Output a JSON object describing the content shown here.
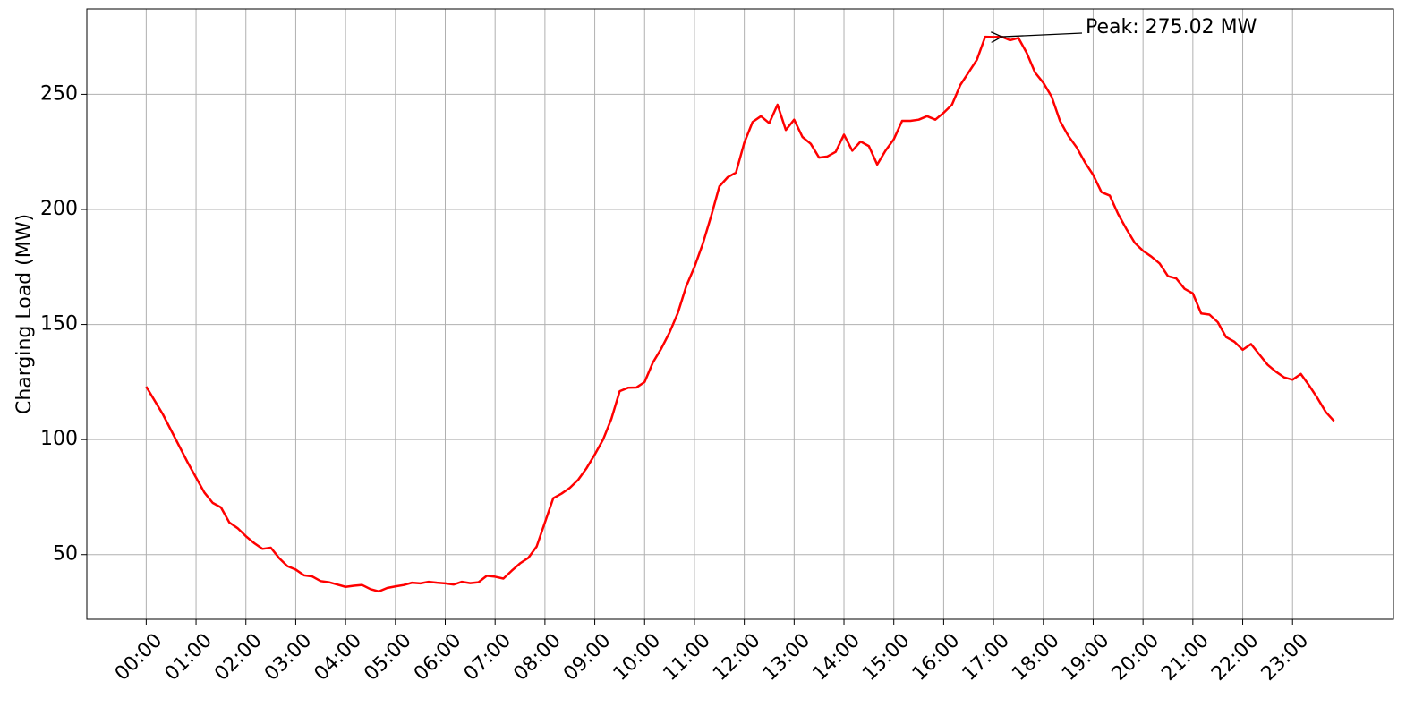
{
  "chart_data": {
    "type": "line",
    "ylabel": "Charging Load (MW)",
    "annotation": "Peak: 275.02 MW",
    "color": "#ff0000",
    "grid": true,
    "x": [
      0,
      10,
      20,
      30,
      40,
      50,
      60,
      70,
      80,
      90,
      100,
      110,
      120,
      130,
      140,
      150,
      160,
      170,
      180,
      190,
      200,
      210,
      220,
      230,
      240,
      250,
      260,
      270,
      280,
      290,
      300,
      310,
      320,
      330,
      340,
      350,
      360,
      370,
      380,
      390,
      400,
      410,
      420,
      430,
      440,
      450,
      460,
      470,
      480,
      490,
      500,
      510,
      520,
      530,
      540,
      550,
      560,
      570,
      580,
      590,
      600,
      610,
      620,
      630,
      640,
      650,
      660,
      670,
      680,
      690,
      700,
      710,
      720,
      730,
      740,
      750,
      760,
      770,
      780,
      790,
      800,
      810,
      820,
      830,
      840,
      850,
      860,
      870,
      880,
      890,
      900,
      910,
      920,
      930,
      940,
      950,
      960,
      970,
      980,
      990,
      1000,
      1010,
      1020,
      1030,
      1040,
      1050,
      1060,
      1070,
      1080,
      1090,
      1100,
      1110,
      1120,
      1130,
      1140,
      1150,
      1160,
      1170,
      1180,
      1190,
      1200,
      1210,
      1220,
      1230,
      1240,
      1250,
      1260,
      1270,
      1280,
      1290,
      1300,
      1310,
      1320,
      1330,
      1340,
      1350,
      1360,
      1370,
      1380,
      1390,
      1400,
      1410,
      1420,
      1430
    ],
    "values": [
      123,
      117,
      111,
      104,
      97,
      90,
      83.5,
      77,
      72.5,
      70.5,
      64,
      61.5,
      58,
      55,
      52.5,
      53,
      48.5,
      45,
      43.5,
      41,
      40.5,
      38.5,
      38,
      37,
      36,
      36.5,
      36.8,
      35,
      34,
      35.5,
      36.2,
      36.8,
      37.8,
      37.5,
      38.2,
      37.8,
      37.5,
      37,
      38.2,
      37.6,
      38,
      40.8,
      40.4,
      39.6,
      43,
      46.2,
      48.6,
      53.5,
      64,
      74.5,
      76.5,
      79,
      82.5,
      87.5,
      93.5,
      100,
      109,
      121,
      122.5,
      122.6,
      125,
      133.5,
      139.5,
      146.5,
      155,
      166.5,
      175,
      185,
      197,
      210,
      214,
      216,
      229,
      238,
      240.5,
      237.5,
      245.5,
      234.5,
      239,
      231.5,
      228.5,
      222.5,
      223,
      225,
      232.5,
      225.5,
      229.5,
      227.5,
      219.5,
      225.5,
      230.5,
      238.5,
      238.5,
      239,
      240.5,
      239,
      242,
      245.5,
      254,
      259.5,
      265,
      275,
      274.9,
      275.02,
      273.5,
      274.5,
      268,
      259.5,
      255,
      249,
      238.5,
      232,
      227,
      220.5,
      215,
      207.5,
      206,
      198,
      191.5,
      185.5,
      182,
      179.5,
      176.5,
      171,
      170,
      165.5,
      163.5,
      154.8,
      154.3,
      151,
      144.5,
      142.5,
      139,
      141.5,
      137,
      132.5,
      129.5,
      127,
      126,
      128.5,
      123.5,
      118,
      112,
      108
    ],
    "xlim": [
      -71.5,
      1501.5
    ],
    "ylim": [
      21.9,
      287.1
    ],
    "xticks": [
      {
        "value": 0,
        "label": "00:00"
      },
      {
        "value": 60,
        "label": "01:00"
      },
      {
        "value": 120,
        "label": "02:00"
      },
      {
        "value": 180,
        "label": "03:00"
      },
      {
        "value": 240,
        "label": "04:00"
      },
      {
        "value": 300,
        "label": "05:00"
      },
      {
        "value": 360,
        "label": "06:00"
      },
      {
        "value": 420,
        "label": "07:00"
      },
      {
        "value": 480,
        "label": "08:00"
      },
      {
        "value": 540,
        "label": "09:00"
      },
      {
        "value": 600,
        "label": "10:00"
      },
      {
        "value": 660,
        "label": "11:00"
      },
      {
        "value": 720,
        "label": "12:00"
      },
      {
        "value": 780,
        "label": "13:00"
      },
      {
        "value": 840,
        "label": "14:00"
      },
      {
        "value": 900,
        "label": "15:00"
      },
      {
        "value": 960,
        "label": "16:00"
      },
      {
        "value": 1020,
        "label": "17:00"
      },
      {
        "value": 1080,
        "label": "18:00"
      },
      {
        "value": 1140,
        "label": "19:00"
      },
      {
        "value": 1200,
        "label": "20:00"
      },
      {
        "value": 1260,
        "label": "21:00"
      },
      {
        "value": 1320,
        "label": "22:00"
      },
      {
        "value": 1380,
        "label": "23:00"
      }
    ],
    "yticks": [
      50,
      100,
      150,
      200,
      250
    ]
  }
}
